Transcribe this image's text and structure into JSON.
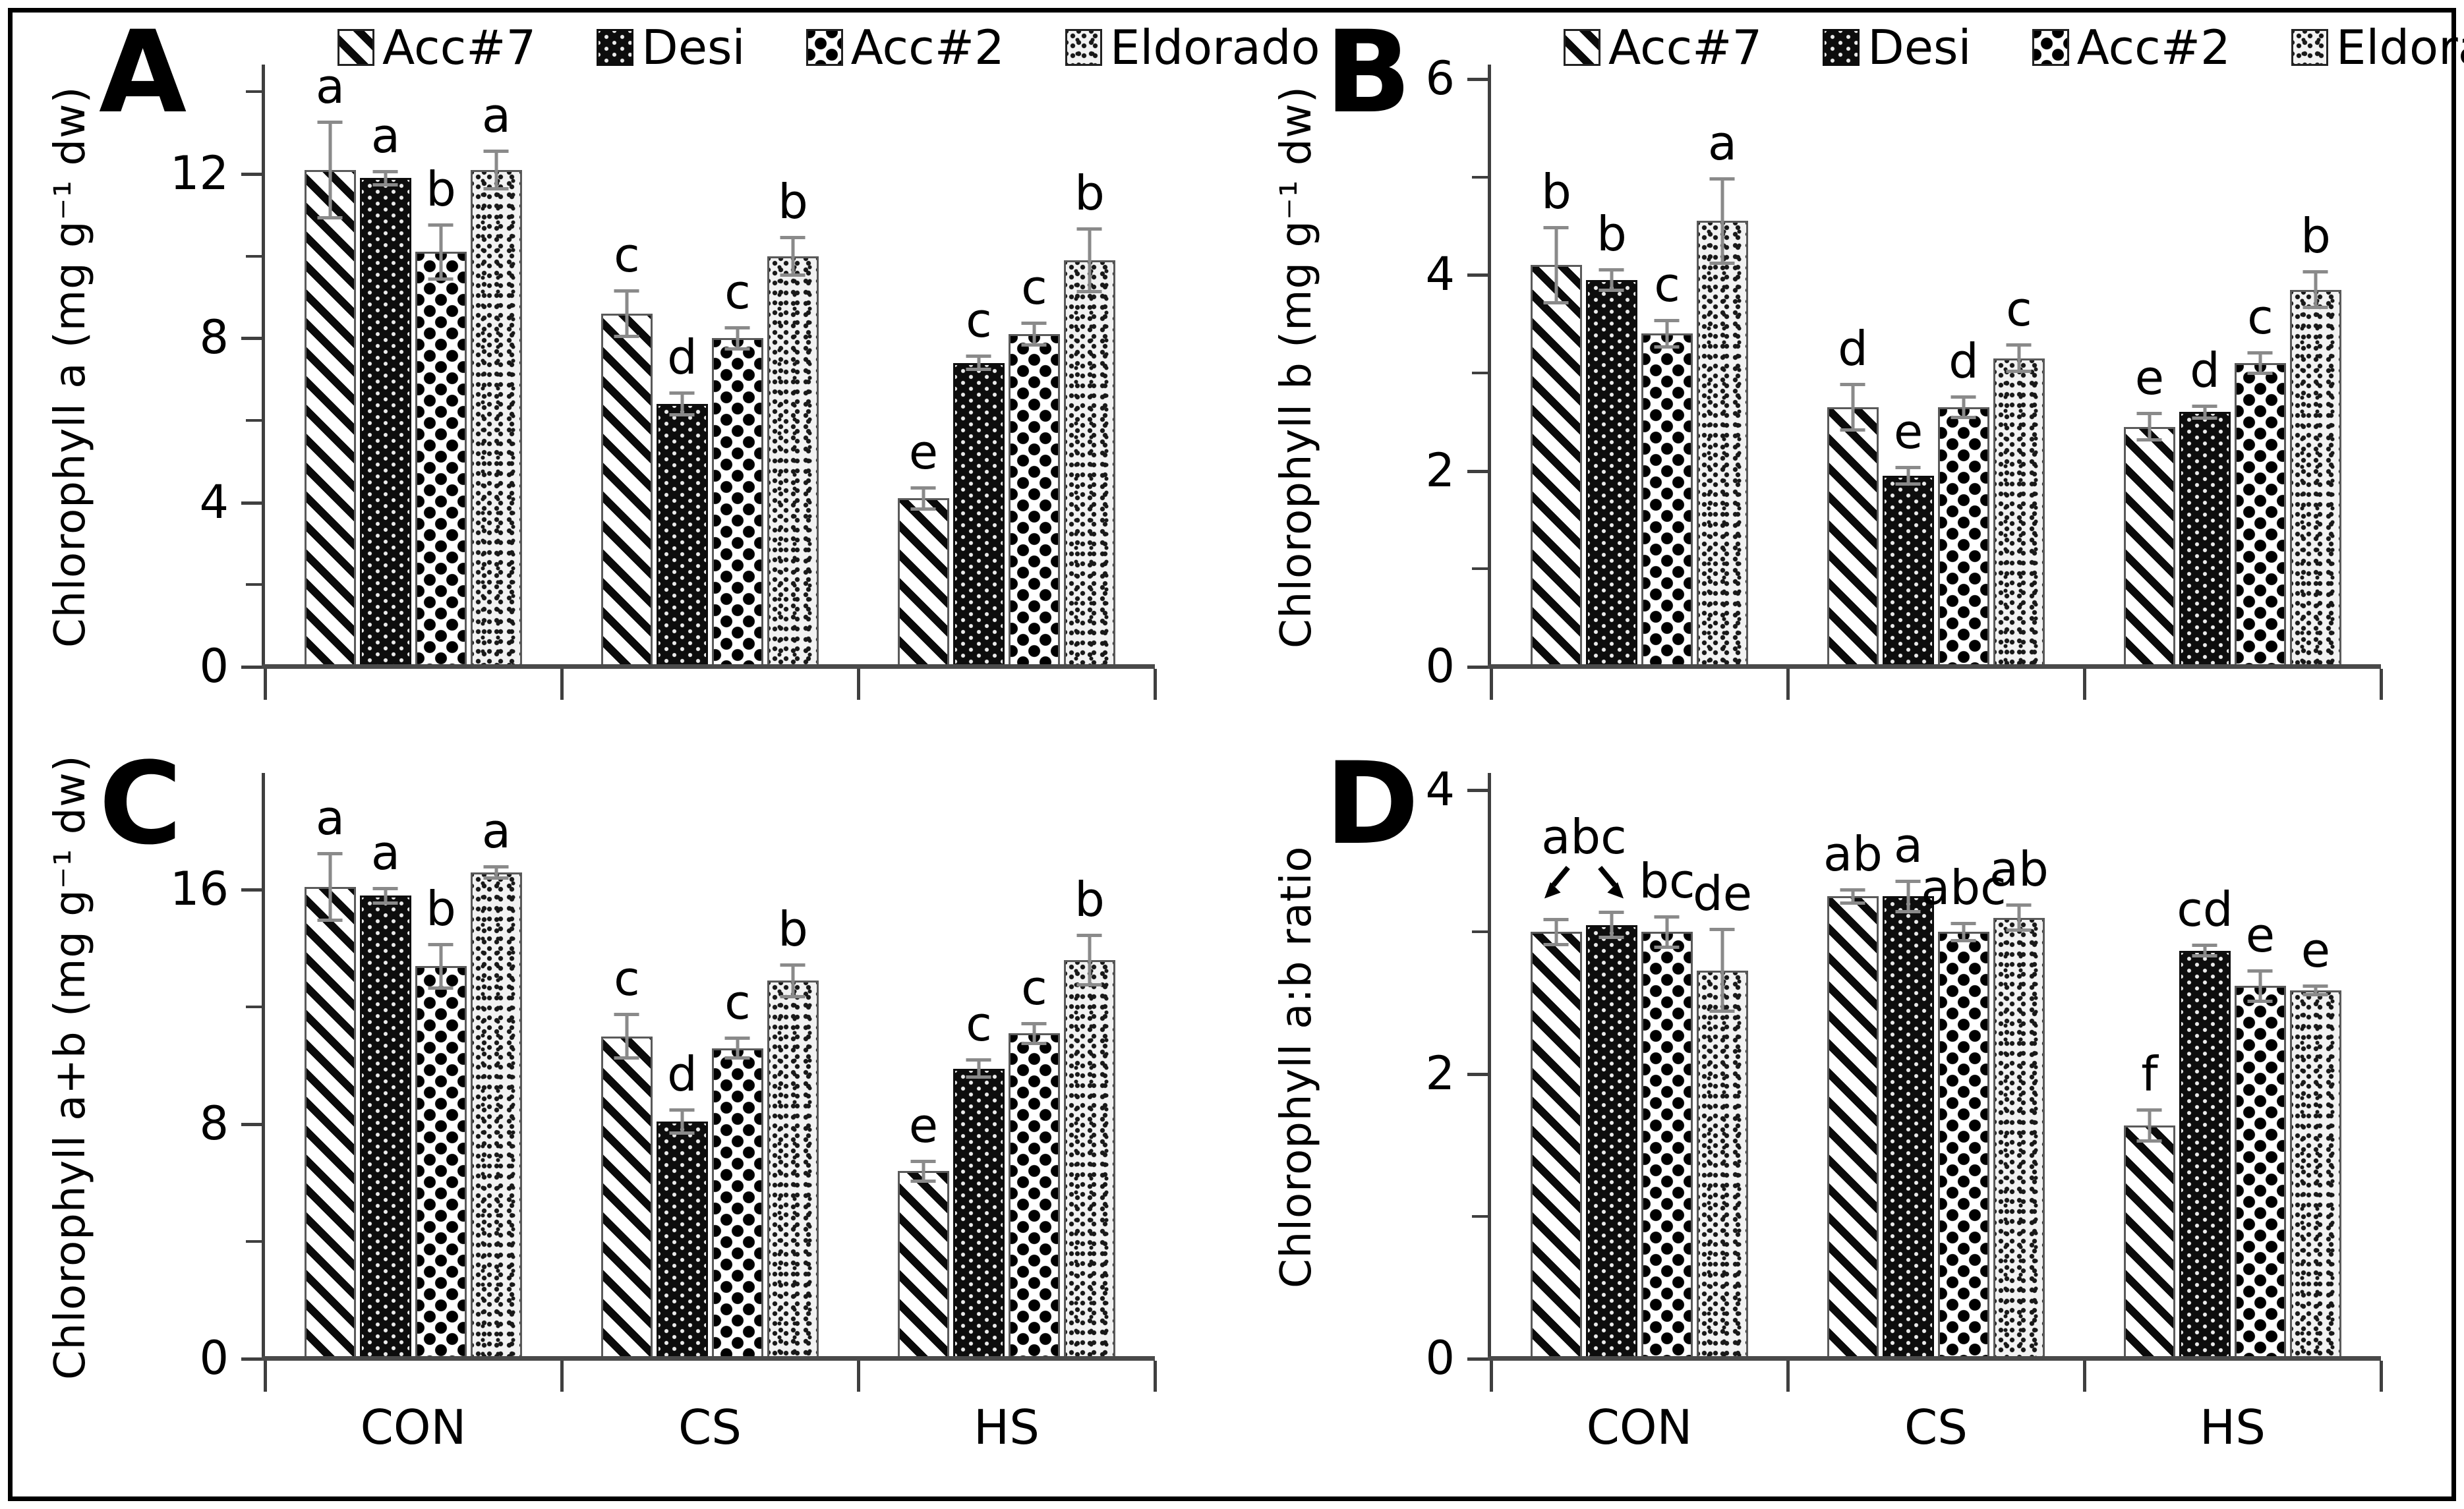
{
  "figure": {
    "background_color": "#ffffff",
    "frame_color": "#000000",
    "axis_color": "#3f3f3f",
    "error_bar_color": "#8a8a8a",
    "legend_entries": [
      "Acc#7",
      "Desi",
      "Acc#2",
      "Eldorado"
    ],
    "x_category_labels": [
      "CON",
      "CS",
      "HS"
    ]
  },
  "chart_data": [
    {
      "label": "A",
      "type": "bar",
      "row": "top",
      "show_legend": true,
      "show_xlabels": false,
      "ylabel": "Chlorophyll a (mg g⁻¹ dw)",
      "ymax": 14.6,
      "yticks_major": [
        0,
        4,
        8,
        12
      ],
      "yticks_minor": [
        2,
        6,
        10,
        14
      ],
      "categories": [
        "CON",
        "CS",
        "HS"
      ],
      "legend_position": "top",
      "grid": false,
      "series": [
        {
          "name": "Acc#7",
          "pattern": "acc7",
          "values": [
            12.1,
            8.6,
            4.1
          ],
          "errors": [
            1.2,
            0.6,
            0.3
          ],
          "letters": [
            "a",
            "c",
            "e"
          ]
        },
        {
          "name": "Desi",
          "pattern": "desi",
          "values": [
            11.9,
            6.4,
            7.4
          ],
          "errors": [
            0.2,
            0.3,
            0.2
          ],
          "letters": [
            "a",
            "d",
            "c"
          ]
        },
        {
          "name": "Acc#2",
          "pattern": "acc2",
          "values": [
            10.1,
            8.0,
            8.1
          ],
          "errors": [
            0.7,
            0.3,
            0.3
          ],
          "letters": [
            "b",
            "c",
            "c"
          ]
        },
        {
          "name": "Eldorado",
          "pattern": "eldorado",
          "values": [
            12.1,
            10.0,
            9.9
          ],
          "errors": [
            0.5,
            0.5,
            0.8
          ],
          "letters": [
            "a",
            "b",
            "b"
          ]
        }
      ]
    },
    {
      "label": "B",
      "type": "bar",
      "row": "top",
      "show_legend": true,
      "show_xlabels": false,
      "ylabel": "Chlorophyll b (mg g⁻¹ dw)",
      "ymax": 6.12,
      "yticks_major": [
        0,
        2,
        4,
        6
      ],
      "yticks_minor": [
        1,
        3,
        5
      ],
      "categories": [
        "CON",
        "CS",
        "HS"
      ],
      "legend_position": "top",
      "grid": false,
      "series": [
        {
          "name": "Acc#7",
          "pattern": "acc7",
          "values": [
            4.1,
            2.65,
            2.45
          ],
          "errors": [
            0.4,
            0.25,
            0.15
          ],
          "letters": [
            "b",
            "d",
            "e"
          ]
        },
        {
          "name": "Desi",
          "pattern": "desi",
          "values": [
            3.95,
            1.95,
            2.6
          ],
          "errors": [
            0.12,
            0.1,
            0.08
          ],
          "letters": [
            "b",
            "e",
            "d"
          ]
        },
        {
          "name": "Acc#2",
          "pattern": "acc2",
          "values": [
            3.4,
            2.65,
            3.1
          ],
          "errors": [
            0.15,
            0.12,
            0.12
          ],
          "letters": [
            "c",
            "d",
            "c"
          ]
        },
        {
          "name": "Eldorado",
          "pattern": "eldorado",
          "values": [
            4.55,
            3.15,
            3.85
          ],
          "errors": [
            0.45,
            0.15,
            0.2
          ],
          "letters": [
            "a",
            "c",
            "b"
          ]
        }
      ]
    },
    {
      "label": "C",
      "type": "bar",
      "row": "bottom",
      "show_legend": false,
      "show_xlabels": true,
      "ylabel": "Chlorophyll a+b (mg g⁻¹ dw)",
      "ymax": 19.9,
      "yticks_major": [
        0,
        8,
        16
      ],
      "yticks_minor": [
        4,
        12
      ],
      "categories": [
        "CON",
        "CS",
        "HS"
      ],
      "grid": false,
      "series": [
        {
          "name": "Acc#7",
          "pattern": "acc7",
          "values": [
            16.1,
            11.0,
            6.4
          ],
          "errors": [
            1.2,
            0.8,
            0.4
          ],
          "letters": [
            "a",
            "c",
            "e"
          ]
        },
        {
          "name": "Desi",
          "pattern": "desi",
          "values": [
            15.8,
            8.1,
            9.9
          ],
          "errors": [
            0.3,
            0.45,
            0.35
          ],
          "letters": [
            "a",
            "d",
            "c"
          ]
        },
        {
          "name": "Acc#2",
          "pattern": "acc2",
          "values": [
            13.4,
            10.6,
            11.1
          ],
          "errors": [
            0.8,
            0.4,
            0.4
          ],
          "letters": [
            "b",
            "c",
            "c"
          ]
        },
        {
          "name": "Eldorado",
          "pattern": "eldorado",
          "values": [
            16.6,
            12.9,
            13.6
          ],
          "errors": [
            0.25,
            0.6,
            0.9
          ],
          "letters": [
            "a",
            "b",
            "b"
          ]
        }
      ]
    },
    {
      "label": "D",
      "type": "bar",
      "row": "bottom",
      "show_legend": false,
      "show_xlabels": true,
      "ylabel": "Chlorophyll a:b ratio",
      "ymax": 4.1,
      "yticks_major": [
        0,
        2,
        4
      ],
      "yticks_minor": [
        1,
        3
      ],
      "categories": [
        "CON",
        "CS",
        "HS"
      ],
      "grid": false,
      "annotation": {
        "text": "abc",
        "category_index": 0,
        "bar_indices": [
          0,
          1
        ]
      },
      "series": [
        {
          "name": "Acc#7",
          "pattern": "acc7",
          "values": [
            3.0,
            3.25,
            1.64
          ],
          "errors": [
            0.1,
            0.06,
            0.12
          ],
          "letters": [
            "",
            "ab",
            "f"
          ]
        },
        {
          "name": "Desi",
          "pattern": "desi",
          "values": [
            3.05,
            3.25,
            2.87
          ],
          "errors": [
            0.1,
            0.12,
            0.05
          ],
          "letters": [
            "",
            "a",
            "cd"
          ]
        },
        {
          "name": "Acc#2",
          "pattern": "acc2",
          "values": [
            3.0,
            3.0,
            2.62
          ],
          "errors": [
            0.12,
            0.07,
            0.12
          ],
          "letters": [
            "bc",
            "abc",
            "e"
          ]
        },
        {
          "name": "Eldorado",
          "pattern": "eldorado",
          "values": [
            2.73,
            3.1,
            2.59
          ],
          "errors": [
            0.3,
            0.1,
            0.04
          ],
          "letters": [
            "de",
            "ab",
            "e"
          ]
        }
      ]
    }
  ]
}
